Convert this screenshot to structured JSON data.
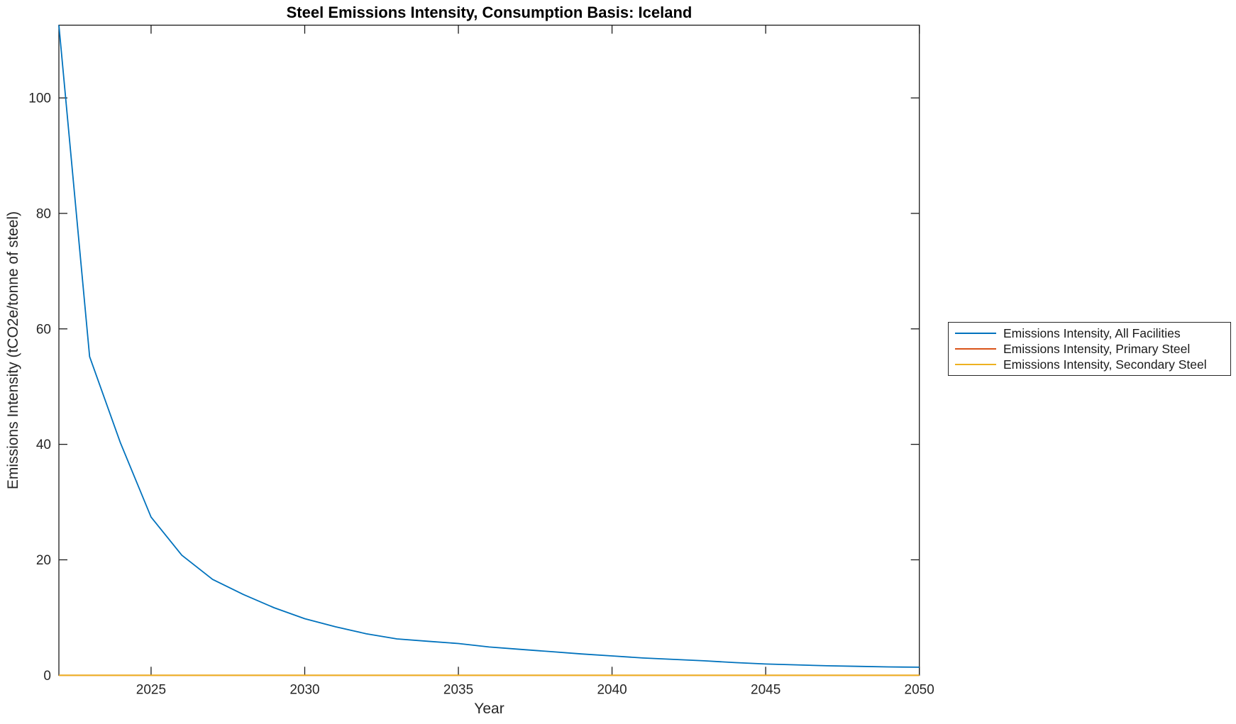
{
  "figure": {
    "title": "Steel Emissions Intensity, Consumption Basis: Iceland",
    "xlabel": "Year",
    "ylabel": "Emissions Intensity (tCO2e/tonne of steel)"
  },
  "colors": {
    "series_blue": "#0072BD",
    "series_orange": "#D95319",
    "series_yellow": "#EDB120",
    "axis": "#1a1a1a",
    "tick_text": "#262626"
  },
  "chart_data": {
    "type": "line",
    "title": "Steel Emissions Intensity, Consumption Basis: Iceland",
    "xlabel": "Year",
    "ylabel": "Emissions Intensity (tCO2e/tonne of steel)",
    "xlim": [
      2022,
      2050
    ],
    "ylim": [
      0,
      112.6
    ],
    "xticks": [
      2025,
      2030,
      2035,
      2040,
      2045,
      2050
    ],
    "yticks": [
      0,
      20,
      40,
      60,
      80,
      100
    ],
    "grid": false,
    "box": true,
    "tick_direction": "in",
    "legend_position": "outside-right",
    "x": [
      2022,
      2023,
      2024,
      2025,
      2026,
      2027,
      2028,
      2029,
      2030,
      2031,
      2032,
      2033,
      2034,
      2035,
      2036,
      2037,
      2038,
      2039,
      2040,
      2041,
      2042,
      2043,
      2044,
      2045,
      2046,
      2047,
      2048,
      2049,
      2050
    ],
    "series": [
      {
        "name": "Emissions Intensity, All Facilities",
        "color": "#0072BD",
        "values": [
          112.6,
          55.2,
          40.3,
          27.4,
          20.8,
          16.6,
          14.0,
          11.7,
          9.8,
          8.4,
          7.2,
          6.3,
          5.9,
          5.5,
          4.9,
          4.5,
          4.1,
          3.7,
          3.35,
          3.0,
          2.75,
          2.5,
          2.2,
          1.95,
          1.8,
          1.65,
          1.55,
          1.45,
          1.4
        ]
      },
      {
        "name": "Emissions Intensity, Primary Steel",
        "color": "#D95319",
        "values": [
          0,
          0,
          0,
          0,
          0,
          0,
          0,
          0,
          0,
          0,
          0,
          0,
          0,
          0,
          0,
          0,
          0,
          0,
          0,
          0,
          0,
          0,
          0,
          0,
          0,
          0,
          0,
          0,
          0
        ]
      },
      {
        "name": "Emissions Intensity, Secondary Steel",
        "color": "#EDB120",
        "values": [
          0,
          0,
          0,
          0,
          0,
          0,
          0,
          0,
          0,
          0,
          0,
          0,
          0,
          0,
          0,
          0,
          0,
          0,
          0,
          0,
          0,
          0,
          0,
          0,
          0,
          0,
          0,
          0,
          0
        ]
      }
    ]
  }
}
